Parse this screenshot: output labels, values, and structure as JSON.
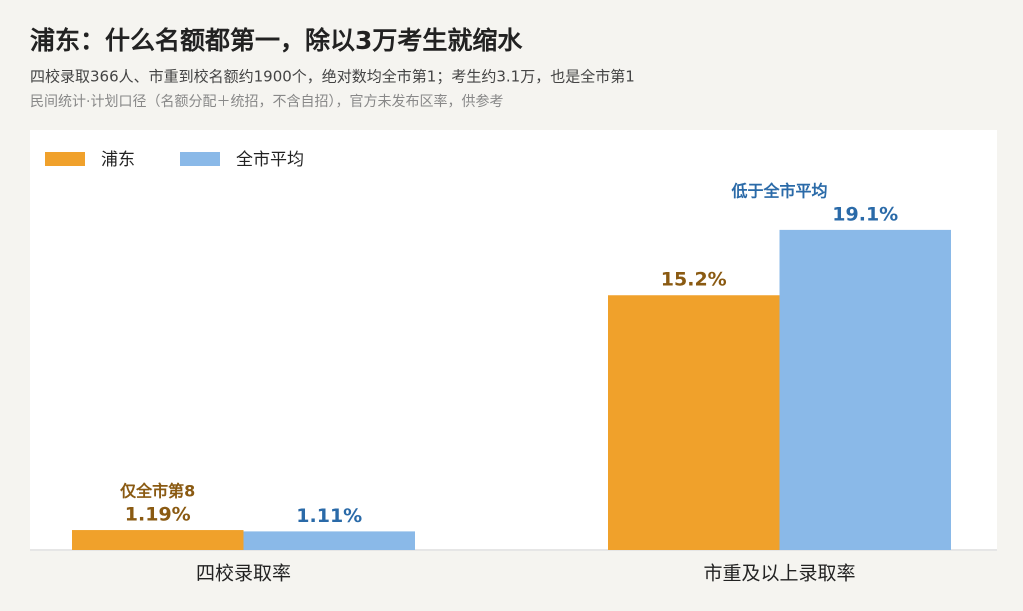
{
  "chart_data": {
    "type": "bar",
    "title": "浦东：什么名额都第一，除以3万考生就缩水",
    "subtitle": "四校录取366人、市重到校名额约1900个，绝对数均全市第1；考生约3.1万，也是全市第1",
    "note": "民间统计·计划口径（名额分配＋统招，不含自招），官方未发布区率，供参考",
    "categories": [
      "四校录取率",
      "市重及以上录取率"
    ],
    "series": [
      {
        "name": "浦东",
        "color": "#f0a12b",
        "label_color": "#8a5a12",
        "values": [
          1.19,
          15.2
        ],
        "value_labels": [
          "1.19%",
          "15.2%"
        ]
      },
      {
        "name": "全市平均",
        "color": "#8ab9e8",
        "label_color": "#2a6aa8",
        "values": [
          1.11,
          19.1
        ],
        "value_labels": [
          "1.11%",
          "19.1%"
        ]
      }
    ],
    "annotations": [
      "仅全市第8",
      "低于全市平均"
    ],
    "ylim": [
      0,
      25
    ],
    "legend": "top-left"
  }
}
